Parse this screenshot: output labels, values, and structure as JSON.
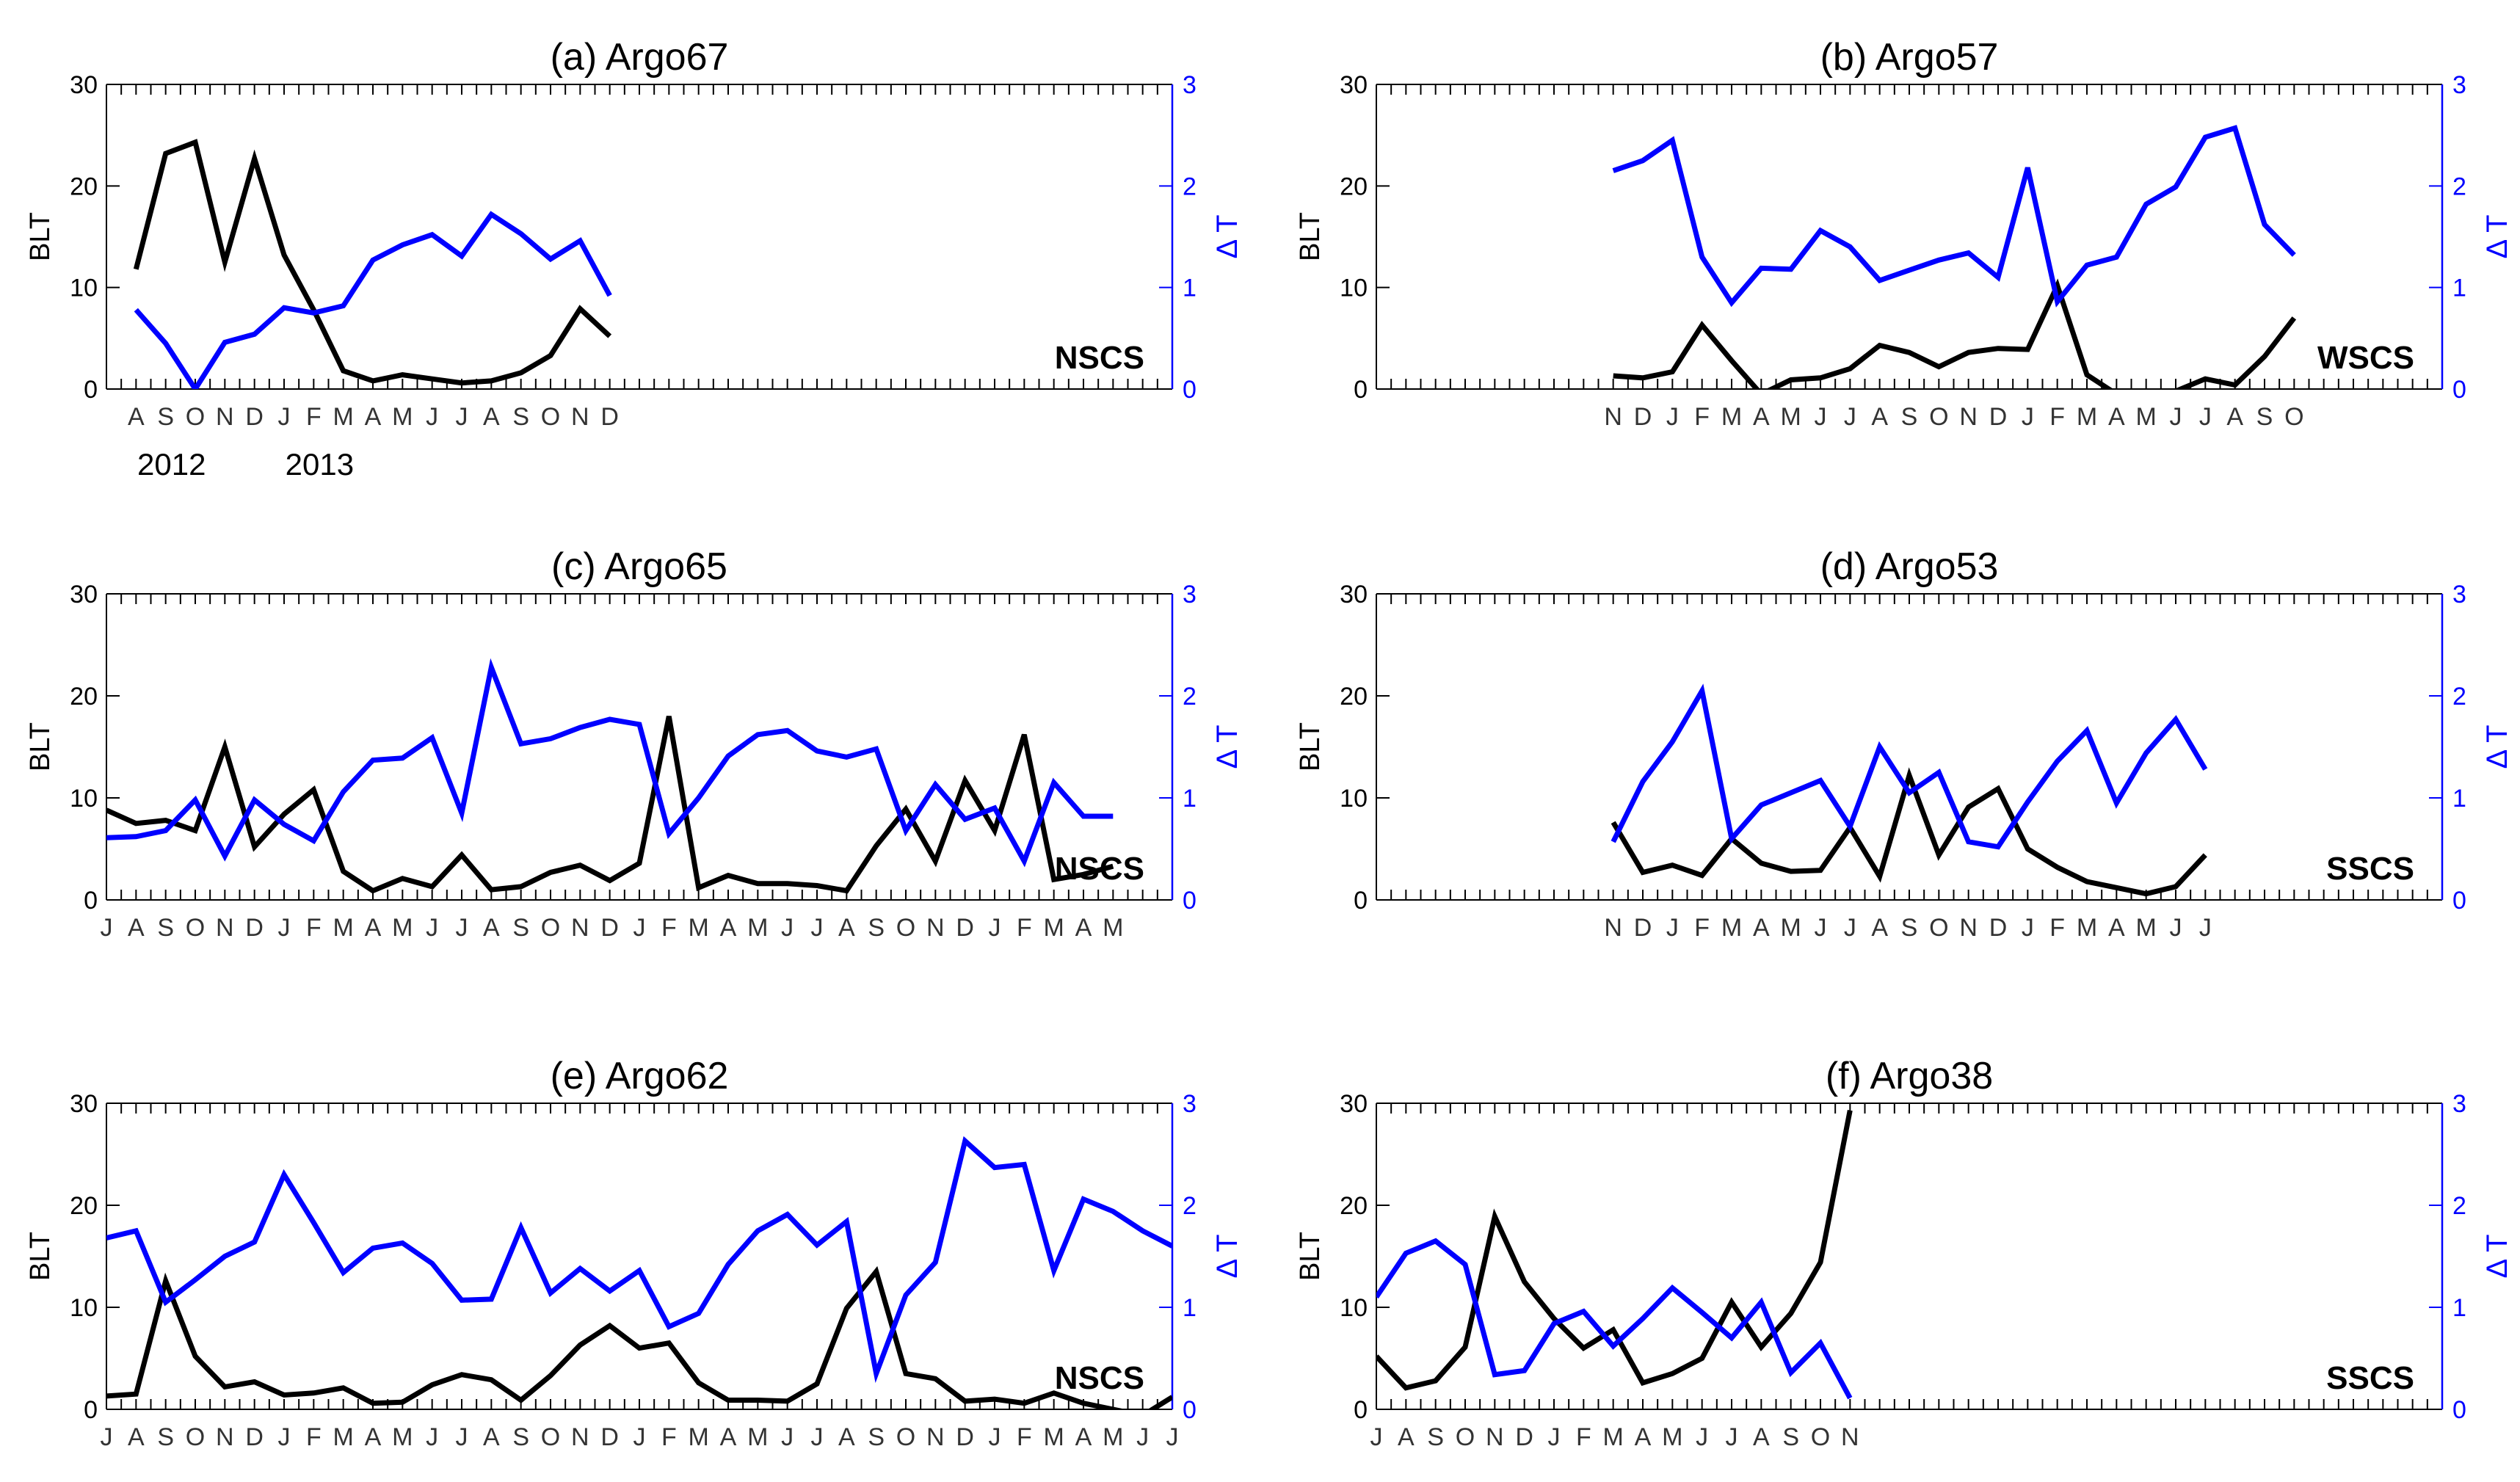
{
  "figure": {
    "months": [
      "J",
      "F",
      "M",
      "A",
      "M",
      "J",
      "J",
      "A",
      "S",
      "O",
      "N",
      "D"
    ],
    "colors": {
      "blt": "#000000",
      "dt": "#0000ff"
    }
  },
  "chart_data": [
    {
      "type": "line",
      "title": "(a) Argo67",
      "ylabel": "BLT",
      "y2label": "Δ T",
      "ylim": [
        0,
        30
      ],
      "y2lim": [
        0,
        3
      ],
      "yticks": [
        0,
        10,
        20,
        30
      ],
      "y2ticks": [
        0,
        1,
        2,
        3
      ],
      "xlim": [
        7,
        43
      ],
      "x_axis": "month index (Jan 2012 = 1)",
      "region_label": "NSCS",
      "tick_range": [
        8,
        24
      ],
      "year_labels": [
        {
          "text": "2012",
          "x": 9.2
        },
        {
          "text": "2013",
          "x": 14.2
        }
      ],
      "series": [
        {
          "name": "BLT",
          "axis": "left",
          "color": "#000000",
          "x": [
            8,
            9,
            10,
            11,
            12,
            13,
            14,
            15,
            16,
            17,
            18,
            19,
            20,
            21,
            22,
            23,
            24
          ],
          "values": [
            11.8,
            23.2,
            24.3,
            12.5,
            22.7,
            13.2,
            7.8,
            1.8,
            0.8,
            1.4,
            1.0,
            0.6,
            0.8,
            1.6,
            3.3,
            7.9,
            5.2
          ]
        },
        {
          "name": "ΔT",
          "axis": "right",
          "color": "#0000ff",
          "x": [
            8,
            9,
            10,
            11,
            12,
            13,
            14,
            15,
            16,
            17,
            18,
            19,
            20,
            21,
            22,
            23,
            24
          ],
          "values": [
            0.78,
            0.45,
            0.0,
            0.46,
            0.54,
            0.8,
            0.75,
            0.82,
            1.27,
            1.42,
            1.52,
            1.31,
            1.72,
            1.53,
            1.28,
            1.46,
            0.92
          ]
        }
      ]
    },
    {
      "type": "line",
      "title": "(b) Argo57",
      "ylabel": "BLT",
      "y2label": "Δ T",
      "ylim": [
        0,
        30
      ],
      "y2lim": [
        0,
        3
      ],
      "yticks": [
        0,
        10,
        20,
        30
      ],
      "y2ticks": [
        0,
        1,
        2,
        3
      ],
      "xlim": [
        3,
        39
      ],
      "x_axis": "month index (Jan 2012 = 1)",
      "region_label": "WSCS",
      "tick_range": [
        11,
        34
      ],
      "year_labels": [],
      "series": [
        {
          "name": "BLT",
          "axis": "left",
          "color": "#000000",
          "x": [
            11,
            12,
            13,
            14,
            15,
            16,
            17,
            18,
            19,
            20,
            21,
            22,
            23,
            24,
            25,
            26,
            27,
            28,
            29,
            30,
            31,
            32,
            33,
            34
          ],
          "values": [
            1.3,
            1.1,
            1.7,
            6.3,
            2.8,
            -0.5,
            0.9,
            1.1,
            2.0,
            4.3,
            3.6,
            2.2,
            3.6,
            4.0,
            3.9,
            10.2,
            1.4,
            -0.5,
            -1.0,
            -0.2,
            1.0,
            0.4,
            3.2,
            7.0
          ]
        },
        {
          "name": "ΔT",
          "axis": "right",
          "color": "#0000ff",
          "x": [
            11,
            12,
            13,
            14,
            15,
            16,
            17,
            18,
            19,
            20,
            21,
            22,
            23,
            24,
            25,
            26,
            27,
            28,
            29,
            30,
            31,
            32,
            33,
            34
          ],
          "values": [
            2.15,
            2.25,
            2.45,
            1.3,
            0.85,
            1.19,
            1.18,
            1.56,
            1.4,
            1.07,
            1.17,
            1.27,
            1.34,
            1.1,
            2.18,
            0.86,
            1.22,
            1.3,
            1.82,
            1.99,
            2.48,
            2.57,
            1.62,
            1.32
          ]
        }
      ]
    },
    {
      "type": "line",
      "title": "(c) Argo65",
      "ylabel": "BLT",
      "y2label": "Δ T",
      "ylim": [
        0,
        30
      ],
      "y2lim": [
        0,
        3
      ],
      "yticks": [
        0,
        10,
        20,
        30
      ],
      "y2ticks": [
        0,
        1,
        2,
        3
      ],
      "xlim": [
        7,
        43
      ],
      "x_axis": "month index (Jan 2012 = 1)",
      "region_label": "NSCS",
      "tick_range": [
        7,
        41
      ],
      "year_labels": [],
      "series": [
        {
          "name": "BLT",
          "axis": "left",
          "color": "#000000",
          "x": [
            7,
            8,
            9,
            10,
            11,
            12,
            13,
            14,
            15,
            16,
            17,
            18,
            19,
            20,
            21,
            22,
            23,
            24,
            25,
            26,
            27,
            28,
            29,
            30,
            31,
            32,
            33,
            34,
            35,
            36,
            37,
            38,
            39,
            40,
            41
          ],
          "values": [
            8.8,
            7.5,
            7.8,
            6.8,
            15.0,
            5.2,
            8.4,
            10.8,
            2.8,
            0.9,
            2.1,
            1.3,
            4.4,
            1.0,
            1.3,
            2.7,
            3.4,
            1.9,
            3.6,
            18.0,
            1.2,
            2.4,
            1.6,
            1.6,
            1.4,
            0.9,
            5.3,
            8.9,
            3.8,
            11.7,
            6.8,
            16.2,
            2.0,
            2.5,
            3.3
          ]
        },
        {
          "name": "ΔT",
          "axis": "right",
          "color": "#0000ff",
          "x": [
            7,
            8,
            9,
            10,
            11,
            12,
            13,
            14,
            15,
            16,
            17,
            18,
            19,
            20,
            21,
            22,
            23,
            24,
            25,
            26,
            27,
            28,
            29,
            30,
            31,
            32,
            33,
            34,
            35,
            36,
            37,
            38,
            39,
            40,
            41
          ],
          "values": [
            0.61,
            0.62,
            0.68,
            0.98,
            0.43,
            0.98,
            0.74,
            0.58,
            1.06,
            1.37,
            1.39,
            1.59,
            0.85,
            2.28,
            1.53,
            1.58,
            1.69,
            1.77,
            1.72,
            0.65,
            1.0,
            1.41,
            1.62,
            1.66,
            1.46,
            1.4,
            1.48,
            0.68,
            1.13,
            0.79,
            0.9,
            0.38,
            1.15,
            0.82,
            0.82
          ]
        }
      ]
    },
    {
      "type": "line",
      "title": "(d) Argo53",
      "ylabel": "BLT",
      "y2label": "Δ T",
      "ylim": [
        0,
        30
      ],
      "y2lim": [
        0,
        3
      ],
      "yticks": [
        0,
        10,
        20,
        30
      ],
      "y2ticks": [
        0,
        1,
        2,
        3
      ],
      "xlim": [
        3,
        39
      ],
      "x_axis": "month index (Jan 2012 = 1)",
      "region_label": "SSCS",
      "tick_range": [
        11,
        31
      ],
      "year_labels": [],
      "series": [
        {
          "name": "BLT",
          "axis": "left",
          "color": "#000000",
          "x": [
            11,
            12,
            13,
            14,
            15,
            16,
            17,
            18,
            19,
            20,
            21,
            22,
            23,
            24,
            25,
            26,
            27,
            28,
            29,
            30,
            31
          ],
          "values": [
            7.6,
            2.7,
            3.4,
            2.4,
            6.0,
            3.6,
            2.8,
            2.9,
            7.1,
            2.3,
            12.2,
            4.4,
            9.1,
            10.9,
            5.0,
            3.2,
            1.8,
            1.2,
            0.6,
            1.3,
            4.4
          ]
        },
        {
          "name": "ΔT",
          "axis": "right",
          "color": "#0000ff",
          "x": [
            11,
            12,
            13,
            14,
            15,
            16,
            17,
            18,
            19,
            20,
            21,
            22,
            23,
            24,
            25,
            26,
            27,
            28,
            29,
            30,
            31
          ],
          "values": [
            0.57,
            1.16,
            1.55,
            2.05,
            0.6,
            0.93,
            1.05,
            1.17,
            0.72,
            1.5,
            1.05,
            1.25,
            0.57,
            0.52,
            0.96,
            1.36,
            1.66,
            0.95,
            1.44,
            1.77,
            1.28
          ]
        }
      ]
    },
    {
      "type": "line",
      "title": "(e) Argo62",
      "ylabel": "BLT",
      "y2label": "Δ T",
      "ylim": [
        0,
        30
      ],
      "y2lim": [
        0,
        3
      ],
      "yticks": [
        0,
        10,
        20,
        30
      ],
      "y2ticks": [
        0,
        1,
        2,
        3
      ],
      "xlim": [
        7,
        43
      ],
      "x_axis": "month index (Jan 2012 = 1)",
      "region_label": "NSCS",
      "tick_range": [
        7,
        43
      ],
      "year_labels": [],
      "series": [
        {
          "name": "BLT",
          "axis": "left",
          "color": "#000000",
          "x": [
            7,
            8,
            9,
            10,
            11,
            12,
            13,
            14,
            15,
            16,
            17,
            18,
            19,
            20,
            21,
            22,
            23,
            24,
            25,
            26,
            27,
            28,
            29,
            30,
            31,
            32,
            33,
            34,
            35,
            36,
            37,
            38,
            39,
            40,
            41,
            42,
            43
          ],
          "values": [
            1.3,
            1.5,
            12.6,
            5.2,
            2.2,
            2.7,
            1.4,
            1.6,
            2.1,
            0.6,
            0.7,
            2.4,
            3.4,
            2.9,
            0.9,
            3.3,
            6.3,
            8.2,
            6.0,
            6.5,
            2.6,
            0.9,
            0.9,
            0.8,
            2.5,
            9.9,
            13.5,
            3.5,
            3.0,
            0.8,
            1.0,
            0.6,
            1.6,
            0.6,
            0.0,
            -0.6,
            1.2
          ]
        },
        {
          "name": "ΔT",
          "axis": "right",
          "color": "#0000ff",
          "x": [
            7,
            8,
            9,
            10,
            11,
            12,
            13,
            14,
            15,
            16,
            17,
            18,
            19,
            20,
            21,
            22,
            23,
            24,
            25,
            26,
            27,
            28,
            29,
            30,
            31,
            32,
            33,
            34,
            35,
            36,
            37,
            38,
            39,
            40,
            41,
            42,
            43
          ],
          "values": [
            1.68,
            1.75,
            1.05,
            1.27,
            1.5,
            1.64,
            2.3,
            1.83,
            1.34,
            1.58,
            1.63,
            1.43,
            1.07,
            1.08,
            1.78,
            1.14,
            1.38,
            1.16,
            1.36,
            0.81,
            0.94,
            1.42,
            1.75,
            1.91,
            1.61,
            1.84,
            0.35,
            1.12,
            1.44,
            2.63,
            2.37,
            2.4,
            1.36,
            2.06,
            1.94,
            1.75,
            1.6
          ]
        }
      ]
    },
    {
      "type": "line",
      "title": "(f) Argo38",
      "ylabel": "BLT",
      "y2label": "Δ T",
      "ylim": [
        0,
        30
      ],
      "y2lim": [
        0,
        3
      ],
      "yticks": [
        0,
        10,
        20,
        30
      ],
      "y2ticks": [
        0,
        1,
        2,
        3
      ],
      "xlim": [
        7,
        43
      ],
      "x_axis": "month index (Jan 2012 = 1)",
      "region_label": "SSCS",
      "tick_range": [
        7,
        23
      ],
      "year_labels": [],
      "series": [
        {
          "name": "BLT",
          "axis": "left",
          "color": "#000000",
          "x": [
            7,
            8,
            9,
            10,
            11,
            12,
            13,
            14,
            15,
            16,
            17,
            18,
            19,
            20,
            21,
            22,
            23
          ],
          "values": [
            5.2,
            2.1,
            2.8,
            6.1,
            18.9,
            12.5,
            8.9,
            6.0,
            7.8,
            2.6,
            3.5,
            5.0,
            10.5,
            6.1,
            9.4,
            14.4,
            29.3
          ]
        },
        {
          "name": "ΔT",
          "axis": "right",
          "color": "#0000ff",
          "x": [
            7,
            8,
            9,
            10,
            11,
            12,
            13,
            14,
            15,
            16,
            17,
            18,
            19,
            20,
            21,
            22,
            23
          ],
          "values": [
            1.1,
            1.53,
            1.65,
            1.42,
            0.34,
            0.38,
            0.84,
            0.96,
            0.62,
            0.89,
            1.19,
            0.95,
            0.7,
            1.05,
            0.36,
            0.65,
            0.11
          ]
        }
      ]
    }
  ]
}
